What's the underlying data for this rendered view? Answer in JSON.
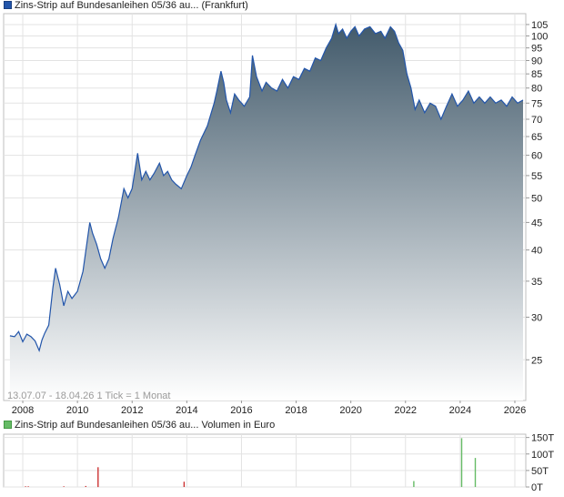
{
  "chart_data": [
    {
      "type": "area",
      "legend": "Zins-Strip auf Bundesanleihen 05/36 au... (Frankfurt)",
      "series_color": "#2255aa",
      "fill_top_color": "#425a6b",
      "fill_bottom_color": "#ffffff",
      "scale": "log",
      "ylim": [
        21,
        110
      ],
      "xlim": [
        2007.3,
        2026.4
      ],
      "info_text": "13.07.07 - 18.04.26   1 Tick = 1 Monat",
      "x_ticks": [
        2008,
        2010,
        2012,
        2014,
        2016,
        2018,
        2020,
        2022,
        2024,
        2026
      ],
      "x_tick_labels": [
        "2008",
        "2010",
        "2012",
        "2014",
        "2016",
        "2018",
        "2020",
        "2022",
        "2024",
        "2026"
      ],
      "y_ticks": [
        25,
        30,
        35,
        40,
        45,
        50,
        55,
        60,
        65,
        70,
        75,
        80,
        85,
        90,
        95,
        100,
        105
      ],
      "y_tick_labels": [
        "25",
        "30",
        "35",
        "40",
        "45",
        "50",
        "55",
        "60",
        "65",
        "70",
        "75",
        "80",
        "85",
        "90",
        "95",
        "100",
        "105"
      ],
      "grid": true,
      "x": [
        2007.53,
        2007.7,
        2007.85,
        2008.0,
        2008.15,
        2008.3,
        2008.45,
        2008.6,
        2008.7,
        2008.8,
        2008.95,
        2009.1,
        2009.2,
        2009.35,
        2009.5,
        2009.65,
        2009.8,
        2010.0,
        2010.2,
        2010.45,
        2010.55,
        2010.7,
        2010.85,
        2011.0,
        2011.15,
        2011.3,
        2011.5,
        2011.7,
        2011.85,
        2012.0,
        2012.2,
        2012.35,
        2012.5,
        2012.65,
        2012.8,
        2013.0,
        2013.15,
        2013.3,
        2013.45,
        2013.6,
        2013.8,
        2014.0,
        2014.15,
        2014.3,
        2014.5,
        2014.75,
        2015.0,
        2015.1,
        2015.25,
        2015.35,
        2015.45,
        2015.6,
        2015.75,
        2015.9,
        2016.1,
        2016.3,
        2016.4,
        2016.55,
        2016.75,
        2016.9,
        2017.1,
        2017.3,
        2017.5,
        2017.7,
        2017.9,
        2018.1,
        2018.3,
        2018.5,
        2018.7,
        2018.9,
        2019.1,
        2019.3,
        2019.45,
        2019.55,
        2019.7,
        2019.85,
        2020.0,
        2020.15,
        2020.3,
        2020.5,
        2020.7,
        2020.9,
        2021.1,
        2021.25,
        2021.45,
        2021.6,
        2021.75,
        2021.9,
        2022.05,
        2022.2,
        2022.35,
        2022.5,
        2022.7,
        2022.9,
        2023.1,
        2023.3,
        2023.5,
        2023.7,
        2023.9,
        2024.1,
        2024.3,
        2024.5,
        2024.7,
        2024.9,
        2025.1,
        2025.3,
        2025.5,
        2025.7,
        2025.9,
        2026.1,
        2026.3
      ],
      "y": [
        27.7,
        27.6,
        28.2,
        27.0,
        27.9,
        27.6,
        27.1,
        26.0,
        27.2,
        28.0,
        29.0,
        34.0,
        37.0,
        34.5,
        31.5,
        33.5,
        32.5,
        33.5,
        36.5,
        45.0,
        43.0,
        41.0,
        38.5,
        37.0,
        38.5,
        42.0,
        46.0,
        52.0,
        50.0,
        52.0,
        60.5,
        54.0,
        56.0,
        54.0,
        55.5,
        58.0,
        55.0,
        56.0,
        54.0,
        53.0,
        52.0,
        55.0,
        57.0,
        60.0,
        64.0,
        68.0,
        75.0,
        79.0,
        86.0,
        82.0,
        76.0,
        72.0,
        78.0,
        76.0,
        74.0,
        77.0,
        92.0,
        84.0,
        79.0,
        82.0,
        80.0,
        79.0,
        83.0,
        80.0,
        84.0,
        83.0,
        87.0,
        86.0,
        91.0,
        90.0,
        95.0,
        99.0,
        105.0,
        101.0,
        103.0,
        99.0,
        102.0,
        104.0,
        100.0,
        103.0,
        104.0,
        101.0,
        102.0,
        99.0,
        104.0,
        102.0,
        97.0,
        94.0,
        85.0,
        80.0,
        73.0,
        76.0,
        72.0,
        75.0,
        74.0,
        70.0,
        74.0,
        78.0,
        74.0,
        76.0,
        79.0,
        75.0,
        77.0,
        75.0,
        77.0,
        75.0,
        76.0,
        74.0,
        77.0,
        75.0,
        76.0
      ]
    },
    {
      "type": "bar",
      "legend": "Zins-Strip auf Bundesanleihen 05/36 au... Volumen in Euro",
      "ylim": [
        0,
        160
      ],
      "y_ticks": [
        0,
        50,
        100,
        150
      ],
      "y_tick_labels": [
        "0T",
        "50T",
        "100T",
        "150T"
      ],
      "x": [
        2008.1,
        2008.2,
        2009.5,
        2010.3,
        2010.75,
        2013.9,
        2022.3,
        2024.05,
        2024.55
      ],
      "values": [
        2,
        2,
        2,
        3,
        60,
        16,
        18,
        148,
        88
      ],
      "colors": [
        "#cc3333",
        "#cc3333",
        "#cc3333",
        "#cc3333",
        "#cc3333",
        "#cc3333",
        "#66bb66",
        "#66bb66",
        "#66bb66"
      ]
    }
  ]
}
